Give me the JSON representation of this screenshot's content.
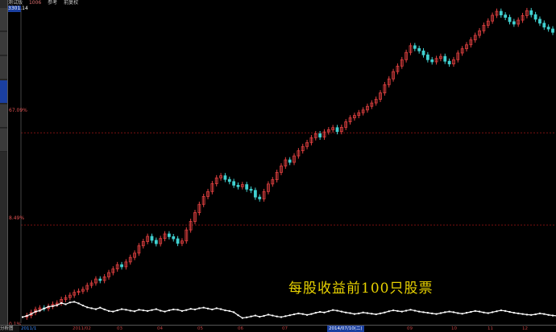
{
  "header": {
    "title": "测试版",
    "code": "1006",
    "extra": "参考",
    "mode": "前复权"
  },
  "price_box": "3301.14",
  "axis_labels": {
    "upper": "67.09%",
    "middle": "8.49%",
    "lower": "0.1%"
  },
  "legend": "每股收益前100只股票",
  "bottom": {
    "corner": "分析图",
    "ticks": [
      "2011/1",
      "2011/02",
      "03",
      "04",
      "05",
      "06",
      "07",
      "2014/07/10(二)",
      "09",
      "10",
      "11",
      "12"
    ]
  },
  "colors": {
    "up": "#e04040",
    "down": "#40d0d0",
    "index": "#ffffff",
    "grid": "#7a1010",
    "legend": "#e8d200"
  },
  "chart_data": {
    "type": "line",
    "series": [
      {
        "values": [
          0.0,
          0.5,
          1.5,
          2.5,
          3.0,
          2.8,
          3.5,
          4.2,
          4.6,
          5.8,
          6.4,
          7.2,
          8.1,
          8.5,
          9.1,
          10.4,
          11.2,
          12.5,
          12.0,
          13.2,
          14.6,
          15.8,
          17.2,
          16.5,
          18.1,
          19.6,
          21.0,
          23.4,
          24.8,
          26.5,
          25.2,
          24.1,
          25.8,
          27.3,
          26.4,
          25.7,
          24.2,
          25.0,
          28.6,
          31.4,
          34.3,
          37.0,
          39.6,
          41.2,
          43.8,
          45.7,
          46.4,
          45.2,
          44.5,
          43.3,
          42.8,
          43.5,
          42.0,
          41.6,
          39.4,
          38.8,
          41.2,
          43.7,
          45.1,
          47.5,
          49.6,
          51.6,
          50.8,
          52.9,
          54.6,
          56.0,
          57.3,
          58.9,
          60.2,
          59.1,
          60.8,
          61.5,
          62.2,
          60.9,
          62.3,
          64.1,
          65.4,
          66.2,
          67.1,
          68.0,
          69.2,
          70.3,
          71.5,
          73.6,
          76.3,
          78.2,
          80.6,
          82.4,
          84.5,
          86.9,
          89.1,
          88.2,
          87.4,
          86.1,
          84.5,
          83.8,
          84.9,
          85.6,
          84.0,
          83.1,
          84.5,
          86.7,
          88.1,
          89.4,
          91.0,
          92.5,
          94.0,
          95.8,
          97.2,
          99.1,
          100.4,
          99.2,
          98.4,
          97.0,
          96.2,
          97.5,
          99.0,
          100.6,
          99.3,
          97.8,
          96.5,
          95.2,
          94.6,
          93.5
        ]
      },
      {
        "values": [
          0.0,
          0.4,
          1.0,
          1.8,
          2.1,
          2.8,
          3.4,
          3.6,
          3.9,
          4.6,
          4.2,
          4.8,
          5.0,
          4.5,
          3.8,
          3.2,
          2.9,
          2.6,
          3.1,
          2.5,
          2.0,
          1.8,
          2.2,
          2.6,
          2.4,
          2.1,
          1.9,
          2.4,
          2.2,
          2.0,
          2.3,
          2.6,
          2.1,
          1.8,
          2.2,
          2.5,
          2.4,
          2.0,
          2.3,
          2.7,
          2.5,
          2.9,
          3.1,
          2.8,
          2.5,
          2.9,
          2.6,
          2.2,
          2.0,
          1.6,
          0.6,
          -0.3,
          -0.1,
          0.2,
          0.5,
          0.1,
          0.4,
          0.8,
          0.5,
          0.2,
          0.0,
          0.3,
          0.6,
          0.9,
          1.2,
          1.0,
          0.7,
          1.0,
          1.4,
          1.7,
          1.5,
          1.9,
          2.3,
          2.1,
          1.8,
          1.5,
          1.3,
          1.0,
          1.2,
          1.5,
          1.3,
          1.1,
          0.9,
          1.2,
          1.5,
          1.9,
          2.2,
          2.0,
          1.8,
          2.1,
          2.4,
          2.1,
          1.8,
          1.6,
          1.4,
          1.2,
          1.0,
          1.3,
          1.6,
          1.8,
          1.6,
          1.3,
          1.1,
          1.4,
          1.7,
          2.0,
          1.8,
          1.5,
          1.3,
          1.6,
          1.9,
          2.2,
          2.0,
          1.7,
          1.4,
          1.2,
          1.0,
          0.8,
          0.7,
          0.9,
          1.2,
          1.0,
          0.7,
          0.5,
          0.4
        ]
      }
    ]
  }
}
